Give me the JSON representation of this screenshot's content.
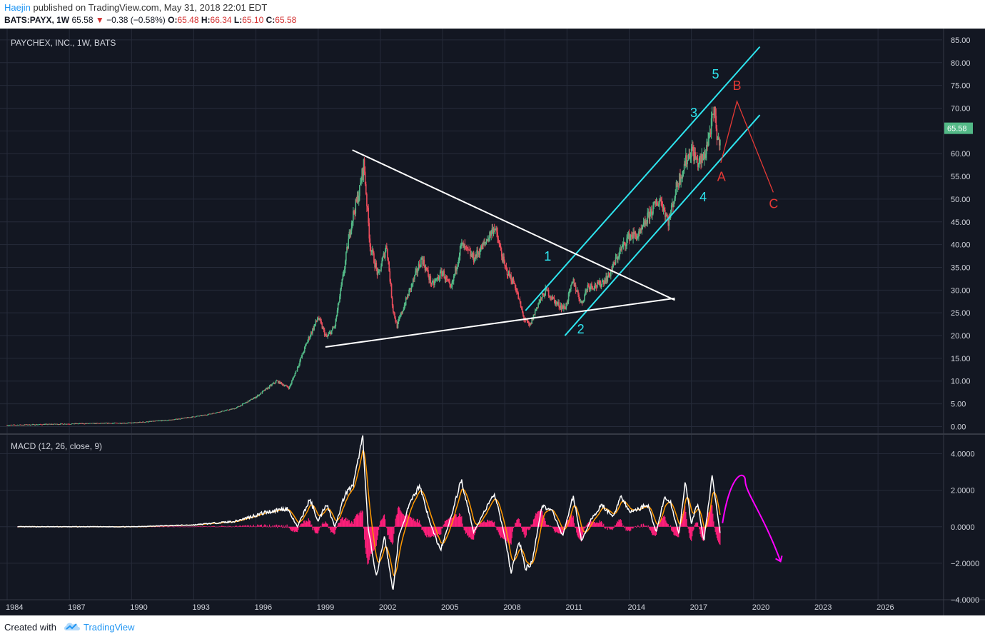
{
  "header": {
    "author": "Haejin",
    "published": " published on TradingView.com, May 31, 2018 22:01 EDT",
    "symbol": "BATS:PAYX, 1W",
    "last": "65.58",
    "change": "−0.38 (−0.58%)",
    "o_label": "O:",
    "o_value": "65.48",
    "h_label": "H:",
    "h_value": "66.34",
    "l_label": "L:",
    "l_value": "65.10",
    "c_label": "C:",
    "c_value": "65.58"
  },
  "footer": {
    "created_with": "Created with",
    "brand": "TradingView"
  },
  "colors": {
    "background": "#131722",
    "grid": "#262b3a",
    "axis_text": "#d1d4dc",
    "candle_up": "#53b987",
    "candle_down": "#eb4d5c",
    "channel": "#2ee6f0",
    "triangle": "#ffffff",
    "abc": "#e53935",
    "macd": "#ffffff",
    "signal": "#ff9800",
    "histogram": "#ff1f7a",
    "forecast": "#ff00ff",
    "price_tag": "#53b987"
  },
  "chart_data": [
    {
      "type": "candlestick",
      "title": "PAYCHEX, INC., 1W, BATS",
      "ylim": [
        -1.5,
        87.5
      ],
      "y_ticks": [
        "85.00",
        "80.00",
        "75.00",
        "70.00",
        "65.00",
        "60.00",
        "55.00",
        "50.00",
        "45.00",
        "40.00",
        "35.00",
        "30.00",
        "25.00",
        "20.00",
        "15.00",
        "10.00",
        "5.00",
        "0.00"
      ],
      "x_ticks": [
        "1984",
        "1987",
        "1990",
        "1993",
        "1996",
        "1999",
        "2002",
        "2005",
        "2008",
        "2011",
        "2014",
        "2017",
        "2020",
        "2023",
        "2026"
      ],
      "last_price_tag": "65.58",
      "price_path": [
        [
          1984.0,
          0.3
        ],
        [
          1987.0,
          0.6
        ],
        [
          1990.0,
          0.8
        ],
        [
          1992.0,
          1.5
        ],
        [
          1993.5,
          2.5
        ],
        [
          1995.0,
          4.0
        ],
        [
          1996.0,
          6.5
        ],
        [
          1997.0,
          10.0
        ],
        [
          1997.6,
          8.5
        ],
        [
          1998.0,
          13.0
        ],
        [
          1998.5,
          19.0
        ],
        [
          1999.0,
          24.0
        ],
        [
          1999.4,
          19.5
        ],
        [
          1999.8,
          22.0
        ],
        [
          2000.2,
          33.0
        ],
        [
          2000.6,
          45.0
        ],
        [
          2001.0,
          52.0
        ],
        [
          2001.2,
          58.0
        ],
        [
          2001.5,
          40.0
        ],
        [
          2001.9,
          33.0
        ],
        [
          2002.3,
          40.0
        ],
        [
          2002.6,
          26.0
        ],
        [
          2002.8,
          22.0
        ],
        [
          2003.1,
          26.0
        ],
        [
          2003.5,
          31.0
        ],
        [
          2004.0,
          37.0
        ],
        [
          2004.5,
          31.0
        ],
        [
          2005.0,
          34.0
        ],
        [
          2005.4,
          30.0
        ],
        [
          2005.9,
          40.0
        ],
        [
          2006.5,
          37.0
        ],
        [
          2007.0,
          40.0
        ],
        [
          2007.5,
          44.0
        ],
        [
          2008.0,
          35.0
        ],
        [
          2008.5,
          31.0
        ],
        [
          2008.9,
          24.0
        ],
        [
          2009.2,
          22.0
        ],
        [
          2009.6,
          27.0
        ],
        [
          2010.0,
          30.0
        ],
        [
          2010.5,
          27.0
        ],
        [
          2010.9,
          26.0
        ],
        [
          2011.3,
          32.0
        ],
        [
          2011.7,
          27.0
        ],
        [
          2012.0,
          31.0
        ],
        [
          2012.5,
          31.0
        ],
        [
          2013.0,
          33.0
        ],
        [
          2013.5,
          38.0
        ],
        [
          2014.0,
          42.0
        ],
        [
          2014.5,
          42.0
        ],
        [
          2015.0,
          47.0
        ],
        [
          2015.5,
          50.0
        ],
        [
          2015.9,
          45.0
        ],
        [
          2016.3,
          53.0
        ],
        [
          2016.7,
          58.0
        ],
        [
          2017.0,
          61.0
        ],
        [
          2017.3,
          58.0
        ],
        [
          2017.6,
          59.0
        ],
        [
          2017.9,
          65.0
        ],
        [
          2018.1,
          69.0
        ],
        [
          2018.3,
          62.0
        ],
        [
          2018.42,
          65.6
        ]
      ],
      "annotations": {
        "channel_upper": [
          [
            2009.0,
            25.5
          ],
          [
            2020.3,
            83.5
          ]
        ],
        "channel_lower": [
          [
            2010.9,
            20.0
          ],
          [
            2020.3,
            68.5
          ]
        ],
        "triangle_top": [
          [
            2000.65,
            60.8
          ],
          [
            2016.2,
            27.8
          ]
        ],
        "triangle_bottom": [
          [
            1999.35,
            17.5
          ],
          [
            2016.2,
            28.2
          ]
        ],
        "abc_path": [
          [
            2018.42,
            58.0
          ],
          [
            2019.2,
            71.5
          ],
          [
            2020.95,
            51.5
          ]
        ],
        "wave_labels": [
          {
            "text": "1",
            "x": 2010.1,
            "y": 36.5,
            "color": "channel"
          },
          {
            "text": "2",
            "x": 2011.7,
            "y": 20.5,
            "color": "channel"
          },
          {
            "text": "3",
            "x": 2017.15,
            "y": 68.0,
            "color": "channel"
          },
          {
            "text": "4",
            "x": 2017.6,
            "y": 49.5,
            "color": "channel"
          },
          {
            "text": "5",
            "x": 2018.2,
            "y": 76.5,
            "color": "channel"
          },
          {
            "text": "A",
            "x": 2018.45,
            "y": 54.0,
            "color": "abc"
          },
          {
            "text": "B",
            "x": 2019.2,
            "y": 74.0,
            "color": "abc"
          },
          {
            "text": "C",
            "x": 2020.95,
            "y": 48.0,
            "color": "abc"
          }
        ]
      }
    },
    {
      "type": "line",
      "title": "MACD (12, 26, close, 9)",
      "ylim": [
        -4.0,
        5.0
      ],
      "y_ticks": [
        "4.0000",
        "2.0000",
        "0.0000",
        "−2.0000",
        "−4.0000"
      ],
      "macd_path": [
        [
          1984.5,
          0.0
        ],
        [
          1990.0,
          0.0
        ],
        [
          1993.0,
          0.1
        ],
        [
          1995.0,
          0.3
        ],
        [
          1996.5,
          0.8
        ],
        [
          1997.5,
          1.0
        ],
        [
          1998.0,
          0.0
        ],
        [
          1998.6,
          1.5
        ],
        [
          1999.0,
          0.3
        ],
        [
          1999.4,
          1.3
        ],
        [
          1999.8,
          0.0
        ],
        [
          2000.3,
          1.8
        ],
        [
          2000.7,
          2.3
        ],
        [
          2001.15,
          5.0
        ],
        [
          2001.4,
          0.0
        ],
        [
          2001.8,
          -2.8
        ],
        [
          2002.2,
          -0.5
        ],
        [
          2002.6,
          -3.5
        ],
        [
          2002.9,
          -0.5
        ],
        [
          2003.4,
          1.2
        ],
        [
          2003.9,
          2.3
        ],
        [
          2004.4,
          0.2
        ],
        [
          2004.9,
          -1.3
        ],
        [
          2005.4,
          0.5
        ],
        [
          2005.9,
          2.6
        ],
        [
          2006.5,
          -0.3
        ],
        [
          2007.0,
          0.8
        ],
        [
          2007.5,
          1.8
        ],
        [
          2008.0,
          -0.5
        ],
        [
          2008.3,
          -2.5
        ],
        [
          2008.7,
          -0.8
        ],
        [
          2009.0,
          -2.3
        ],
        [
          2009.3,
          -2.0
        ],
        [
          2009.8,
          1.2
        ],
        [
          2010.3,
          0.8
        ],
        [
          2010.8,
          -0.5
        ],
        [
          2011.3,
          1.7
        ],
        [
          2011.7,
          -0.8
        ],
        [
          2012.2,
          0.5
        ],
        [
          2012.7,
          1.2
        ],
        [
          2013.2,
          0.5
        ],
        [
          2013.6,
          1.7
        ],
        [
          2014.0,
          0.8
        ],
        [
          2014.5,
          1.0
        ],
        [
          2014.9,
          1.2
        ],
        [
          2015.3,
          -0.3
        ],
        [
          2015.7,
          1.6
        ],
        [
          2016.0,
          1.3
        ],
        [
          2016.4,
          -0.4
        ],
        [
          2016.7,
          2.4
        ],
        [
          2017.0,
          0.2
        ],
        [
          2017.3,
          1.3
        ],
        [
          2017.6,
          -0.8
        ],
        [
          2018.0,
          2.8
        ],
        [
          2018.4,
          -0.5
        ]
      ],
      "forecast": [
        [
          2018.5,
          0.2
        ],
        [
          2019.1,
          2.6
        ],
        [
          2019.6,
          2.5
        ],
        [
          2020.5,
          0.0
        ],
        [
          2021.3,
          -1.9
        ]
      ]
    }
  ]
}
